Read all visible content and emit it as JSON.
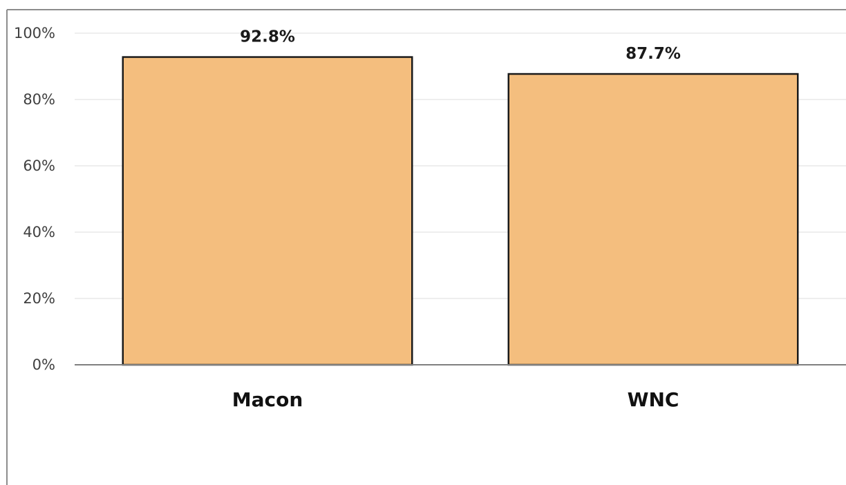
{
  "chart_data": {
    "type": "bar",
    "categories": [
      "Macon",
      "WNC"
    ],
    "values": [
      92.8,
      87.7
    ],
    "data_labels": [
      "92.8%",
      "87.7%"
    ],
    "ylim": [
      0,
      100
    ],
    "yticks": [
      {
        "value": 0,
        "label": "0%"
      },
      {
        "value": 20,
        "label": "20%"
      },
      {
        "value": 40,
        "label": "40%"
      },
      {
        "value": 60,
        "label": "60%"
      },
      {
        "value": 80,
        "label": "80%"
      },
      {
        "value": 100,
        "label": "100%"
      }
    ],
    "grid": true,
    "bar_color": "#F4BE7E",
    "bar_edge_color": "#1a1a1a",
    "grid_color": "#e8e8e8",
    "axis_color": "#7f7f7f",
    "frame_color": "#8c8c8c"
  }
}
